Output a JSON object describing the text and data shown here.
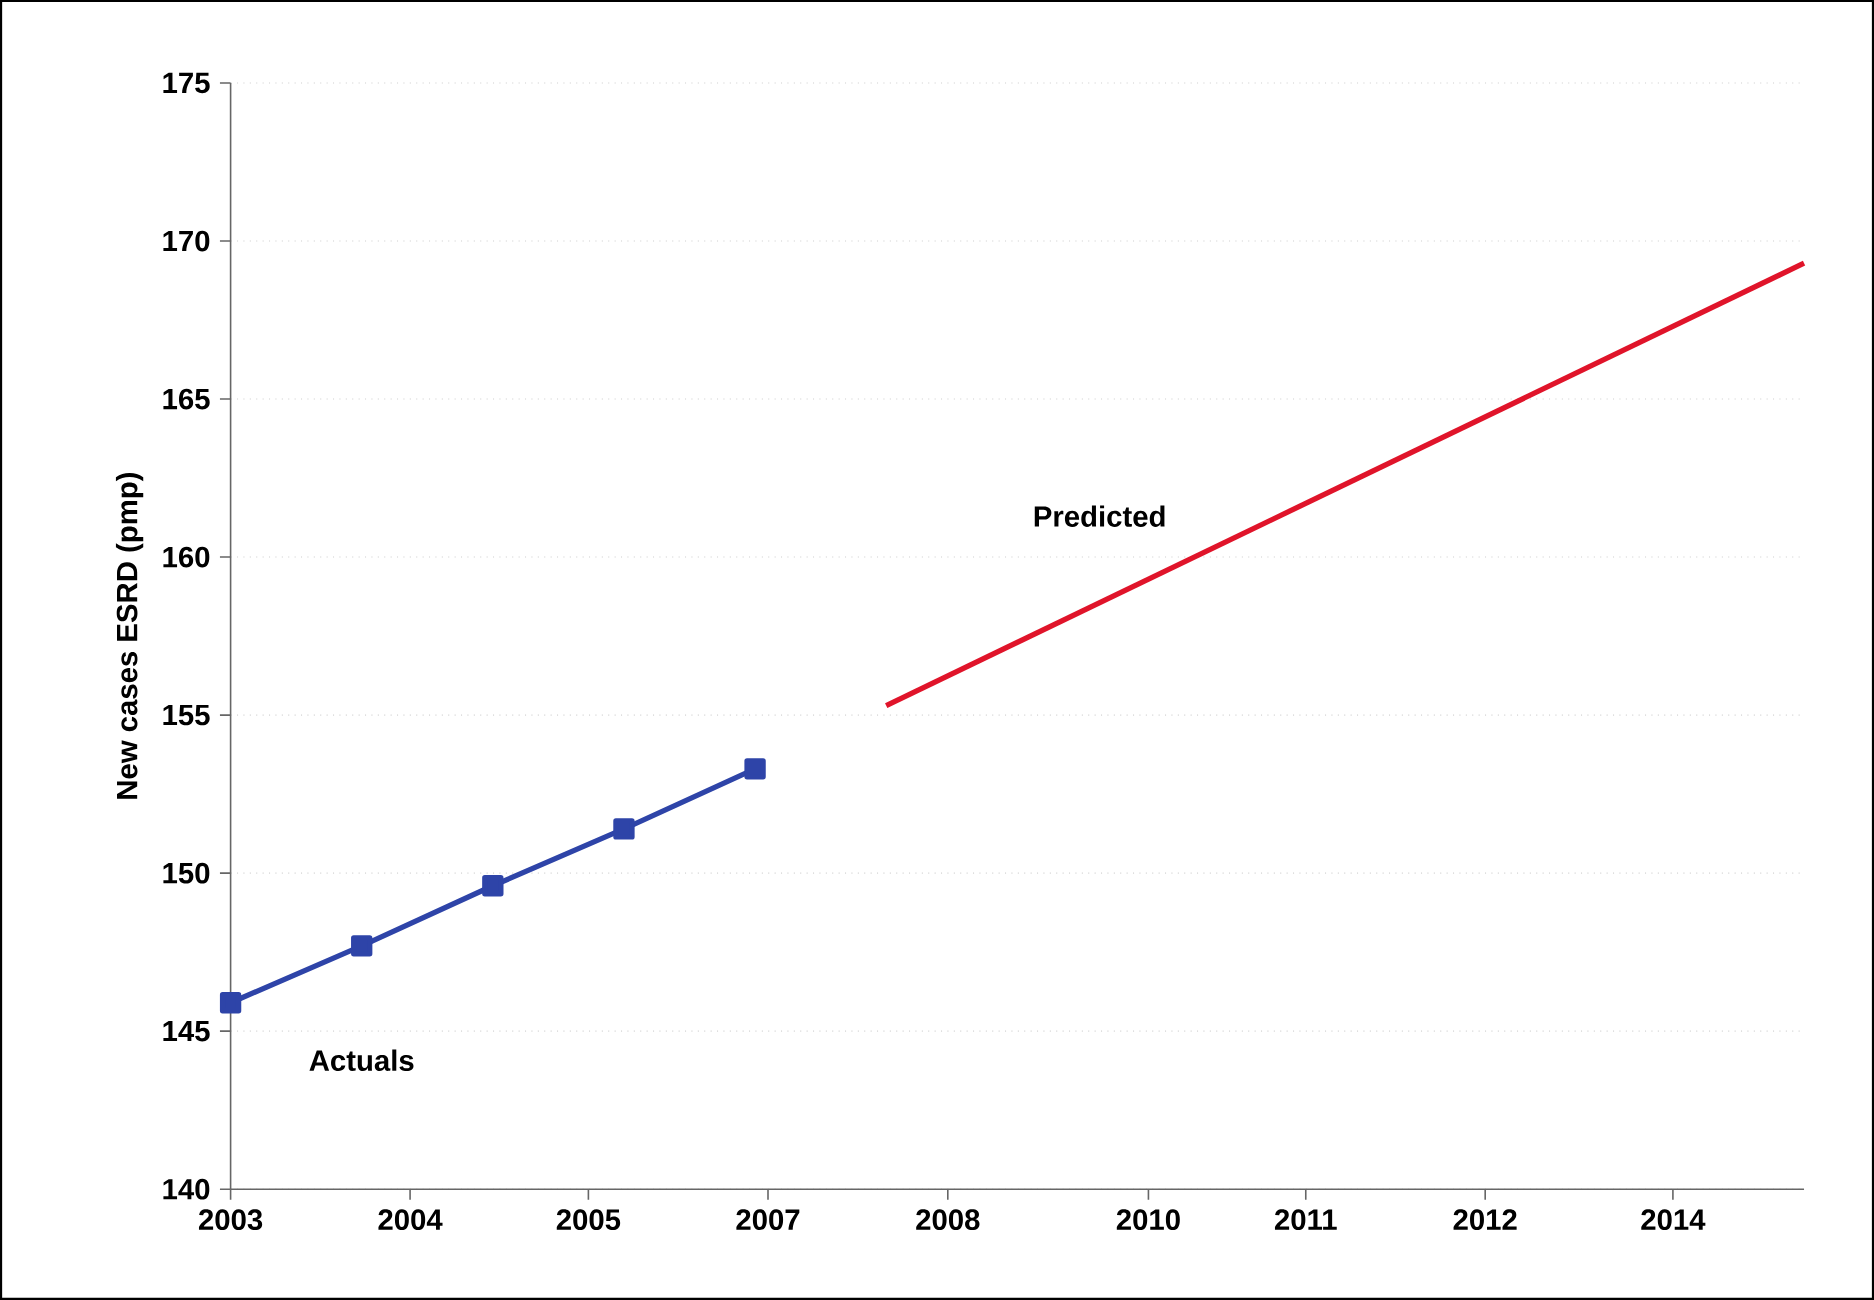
{
  "chart_data": {
    "type": "line",
    "ylabel": "New cases ESRD (pmp)",
    "xlim": [
      "2003",
      "2015"
    ],
    "xticks": [
      {
        "value": "2003-01-01",
        "label": "2003"
      },
      {
        "value": "2004-05-15",
        "label": "2004"
      },
      {
        "value": "2005-09-24",
        "label": "2005"
      },
      {
        "value": "2007-02-06",
        "label": "2007"
      },
      {
        "value": "2008-06-21",
        "label": "2008"
      },
      {
        "value": "2010-01-01",
        "label": "2010"
      },
      {
        "value": "2011-03-15",
        "label": "2011"
      },
      {
        "value": "2012-07-27",
        "label": "2012"
      },
      {
        "value": "2014-01-01",
        "label": "2014"
      }
    ],
    "ylim": [
      140,
      175
    ],
    "yticks": [
      140,
      145,
      150,
      155,
      160,
      165,
      170,
      175
    ],
    "grid": "y",
    "series": [
      {
        "name": "Actuals",
        "color": "#2e44a8",
        "marker": "square",
        "x": [
          "2003",
          "2004",
          "2005",
          "2006",
          "2007"
        ],
        "values": [
          145.9,
          147.7,
          149.6,
          151.4,
          153.3
        ]
      },
      {
        "name": "Predicted",
        "color": "#e0142a",
        "marker": "none",
        "x": [
          "2008",
          "2015"
        ],
        "values": [
          155.3,
          169.3
        ]
      }
    ]
  }
}
